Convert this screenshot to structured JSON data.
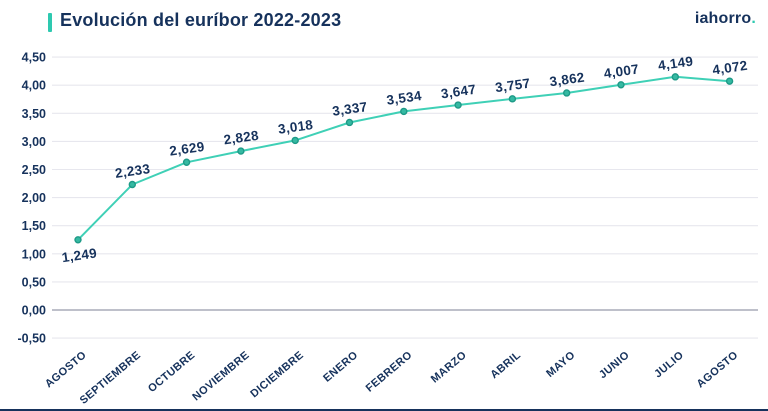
{
  "header": {
    "title": "Evolución del euríbor 2022-2023",
    "logo_text": "iahorro",
    "logo_dot": "."
  },
  "colors": {
    "navy_text": "#16325c",
    "accent_teal": "#2ec9b0",
    "line": "#3fd0b6",
    "marker_fill": "#35b9a2",
    "marker_stroke": "#1e9a87",
    "grid": "#e7e7ee",
    "zero_line": "#a9abb8"
  },
  "chart_data": {
    "type": "line",
    "title": "Evolución del euríbor 2022-2023",
    "categories": [
      "AGOSTO",
      "SEPTIEMBRE",
      "OCTUBRE",
      "NOVIEMBRE",
      "DICIEMBRE",
      "ENERO",
      "FEBRERO",
      "MARZO",
      "ABRIL",
      "MAYO",
      "JUNIO",
      "JULIO",
      "AGOSTO"
    ],
    "values": [
      1.249,
      2.233,
      2.629,
      2.828,
      3.018,
      3.337,
      3.534,
      3.647,
      3.757,
      3.862,
      4.007,
      4.149,
      4.072
    ],
    "value_labels": [
      "1,249",
      "2,233",
      "2,629",
      "2,828",
      "3,018",
      "3,337",
      "3,534",
      "3,647",
      "3,757",
      "3,862",
      "4,007",
      "4,149",
      "4,072"
    ],
    "y_tick_values": [
      4.5,
      4.0,
      3.5,
      3.0,
      2.5,
      2.0,
      1.5,
      1.0,
      0.5,
      0.0,
      -0.5
    ],
    "y_tick_labels": [
      "4,50",
      "4,00",
      "3,50",
      "3,00",
      "2,50",
      "2,00",
      "1,50",
      "1,00",
      "0,50",
      "0,00",
      "-0,50"
    ],
    "ylim": [
      -0.5,
      4.5
    ],
    "xlabel": "",
    "ylabel": "",
    "grid": true,
    "legend_position": "none"
  }
}
